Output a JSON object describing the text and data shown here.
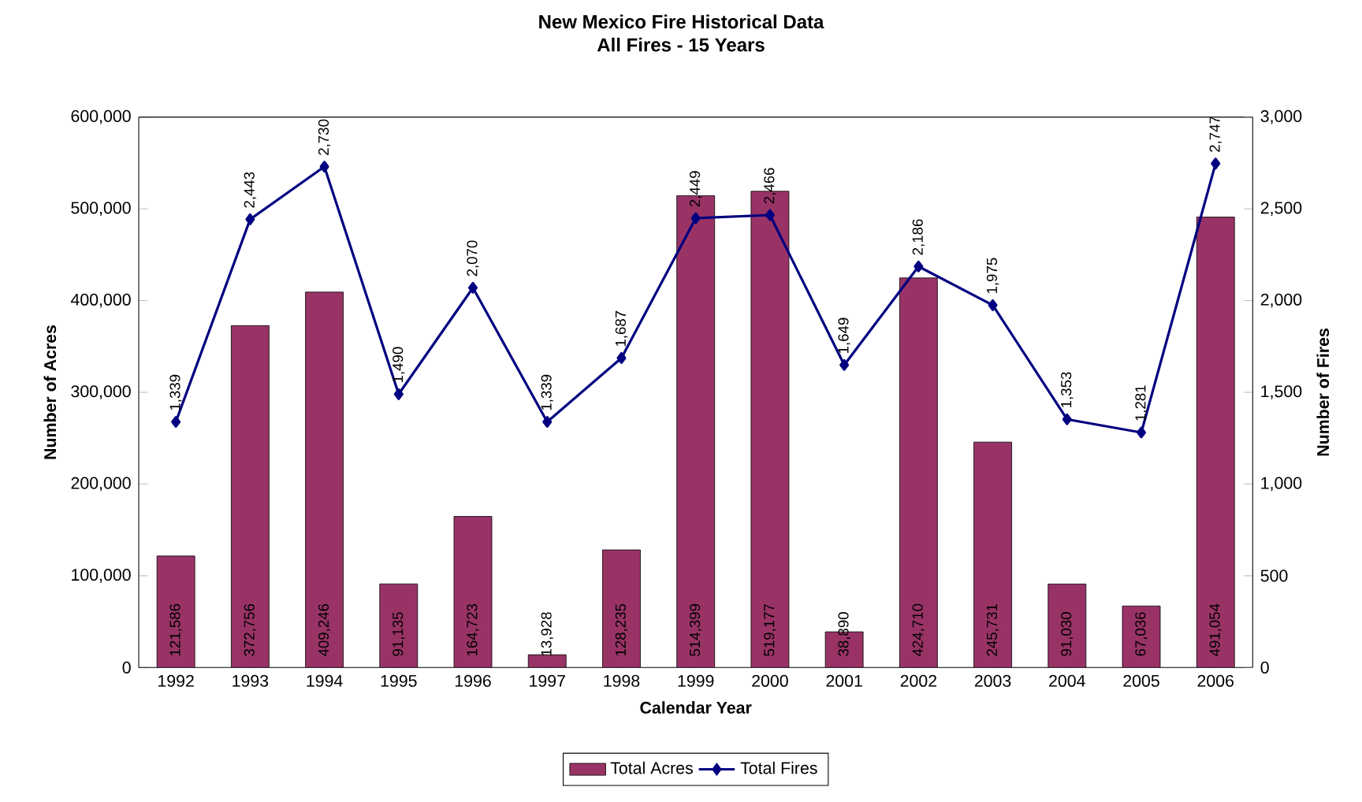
{
  "chart_data": {
    "type": "bar",
    "title": "New Mexico Fire Historical Data",
    "subtitle": "All Fires - 15 Years",
    "xlabel": "Calendar Year",
    "ylabel": "Number of Acres",
    "y2label": "Number of Fires",
    "categories": [
      "1992",
      "1993",
      "1994",
      "1995",
      "1996",
      "1997",
      "1998",
      "1999",
      "2000",
      "2001",
      "2002",
      "2003",
      "2004",
      "2005",
      "2006"
    ],
    "series": [
      {
        "name": "Total Acres",
        "color": "#993366",
        "values": [
          121586,
          372756,
          409246,
          91135,
          164723,
          13928,
          128235,
          514399,
          519177,
          38890,
          424710,
          245731,
          91030,
          67036,
          491054
        ],
        "value_labels": [
          "121,586",
          "372,756",
          "409,246",
          "91,135",
          "164,723",
          "13,928",
          "128,235",
          "514,399",
          "519,177",
          "38,890",
          "424,710",
          "245,731",
          "91,030",
          "67,036",
          "491,054"
        ]
      },
      {
        "name": "Total Fires",
        "type": "line",
        "axis": "y2",
        "color": "#000080",
        "values": [
          1339,
          2443,
          2730,
          1490,
          2070,
          1339,
          1687,
          2449,
          2466,
          1649,
          2186,
          1975,
          1353,
          1281,
          2747
        ],
        "value_labels": [
          "1,339",
          "2,443",
          "2,730",
          "1,490",
          "2,070",
          "1,339",
          "1,687",
          "2,449",
          "2,466",
          "1,649",
          "2,186",
          "1,975",
          "1,353",
          "1,281",
          "2,747"
        ]
      }
    ],
    "ylim": [
      0,
      600000
    ],
    "yticks": [
      0,
      {
        "value": 100000,
        "label": "100,000"
      },
      {
        "value": 200000,
        "label": "200,000"
      },
      {
        "value": 300000,
        "label": "300,000"
      },
      {
        "value": 400000,
        "label": "400,000"
      },
      {
        "value": 500000,
        "label": "500,000"
      },
      {
        "value": 600000,
        "label": "600,000"
      }
    ],
    "y2lim": [
      0,
      3000
    ],
    "y2ticks": [
      0,
      500,
      {
        "value": 1000,
        "label": "1,000"
      },
      {
        "value": 1500,
        "label": "1,500"
      },
      {
        "value": 2000,
        "label": "2,000"
      },
      {
        "value": 2500,
        "label": "2,500"
      },
      {
        "value": 3000,
        "label": "3,000"
      }
    ],
    "legend": "bottom",
    "marker": "diamond",
    "grid": false
  }
}
